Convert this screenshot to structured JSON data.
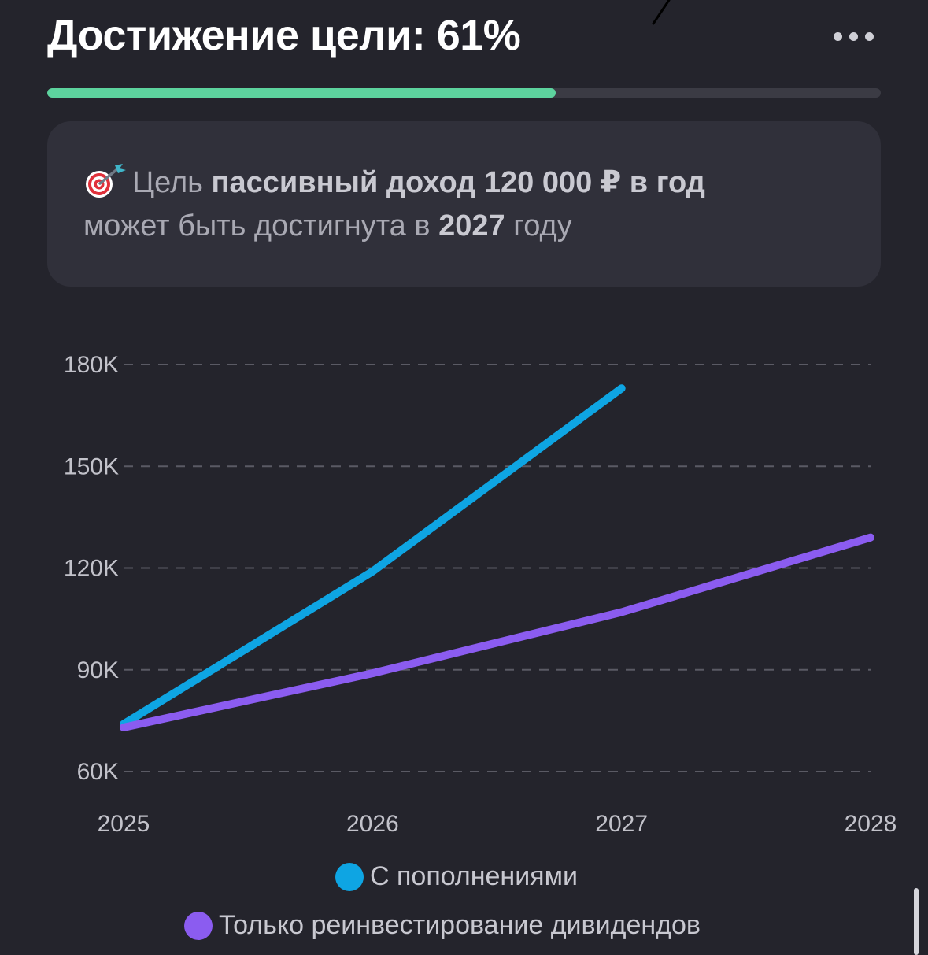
{
  "header": {
    "title": "Достижение цели: 61%",
    "more_icon": "more-horizontal-icon"
  },
  "progress": {
    "value": 0.61,
    "fill_color": "#5dd39e",
    "track_color": "#3b3b44"
  },
  "goal_card": {
    "icon": "target-dart-icon",
    "prefix": "Цель",
    "goal": "пассивный доход 120 000 ₽ в год",
    "middle": "может быть достигнута в",
    "year": "2027",
    "suffix": "году"
  },
  "chart_data": {
    "type": "line",
    "x": [
      "2025",
      "2026",
      "2027",
      "2028"
    ],
    "y_ticks": [
      "60K",
      "90K",
      "120K",
      "150K",
      "180K"
    ],
    "y_tick_values": [
      60000,
      90000,
      120000,
      150000,
      180000
    ],
    "ylim": [
      60000,
      180000
    ],
    "grid": "dashed horizontal",
    "legend_position": "bottom",
    "series": [
      {
        "name": "С пополнениями",
        "color": "#0ea5e3",
        "values": [
          74000,
          119000,
          173000,
          null
        ]
      },
      {
        "name": "Только реинвестирование дивидендов",
        "color": "#8b5cf0",
        "values": [
          73000,
          89000,
          107000,
          129000
        ]
      }
    ]
  },
  "legend": {
    "item_1": "С пополнениями",
    "item_2": "Только реинвестирование дивидендов"
  }
}
